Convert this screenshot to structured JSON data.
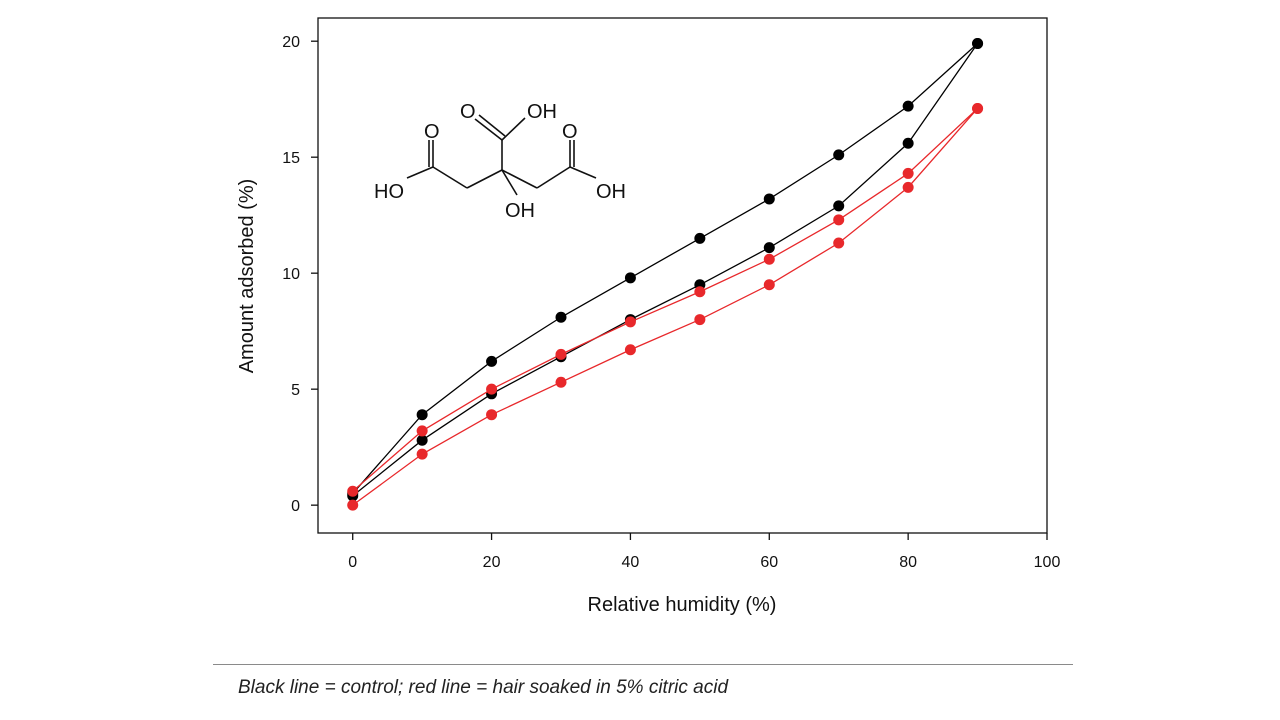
{
  "chart_data": {
    "type": "line",
    "xlabel": "Relative humidity (%)",
    "ylabel": "Amount adsorbed (%)",
    "xlim": [
      -5,
      100
    ],
    "ylim": [
      -1.2,
      21
    ],
    "xticks": [
      0,
      20,
      40,
      60,
      80,
      100
    ],
    "yticks": [
      0,
      5,
      10,
      15,
      20
    ],
    "grid": false,
    "series": [
      {
        "color": "#000000",
        "x": [
          0,
          10,
          20,
          30,
          40,
          50,
          60,
          70,
          80,
          90
        ],
        "y": [
          0.4,
          2.8,
          4.8,
          6.4,
          8.0,
          9.5,
          11.1,
          12.9,
          15.6,
          19.9
        ]
      },
      {
        "color": "#000000",
        "x": [
          0,
          10,
          20,
          30,
          40,
          50,
          60,
          70,
          80,
          90
        ],
        "y": [
          0.5,
          3.9,
          6.2,
          8.1,
          9.8,
          11.5,
          13.2,
          15.1,
          17.2,
          19.9
        ]
      },
      {
        "color": "#e8282b",
        "x": [
          0,
          10,
          20,
          30,
          40,
          50,
          60,
          70,
          80,
          90
        ],
        "y": [
          0.0,
          2.2,
          3.9,
          5.3,
          6.7,
          8.0,
          9.5,
          11.3,
          13.7,
          17.1
        ]
      },
      {
        "color": "#e8282b",
        "x": [
          0,
          10,
          20,
          30,
          40,
          50,
          60,
          70,
          80,
          90
        ],
        "y": [
          0.6,
          3.2,
          5.0,
          6.5,
          7.9,
          9.2,
          10.6,
          12.3,
          14.3,
          17.1
        ]
      }
    ]
  },
  "structure_labels": {
    "top_oh": "OH",
    "left_ho": "HO",
    "right_oh": "OH",
    "center_oh": "OH",
    "o_top": "O",
    "o_left": "O",
    "o_right": "O"
  },
  "caption": "Black line = control; red line = hair soaked in 5% citric acid"
}
